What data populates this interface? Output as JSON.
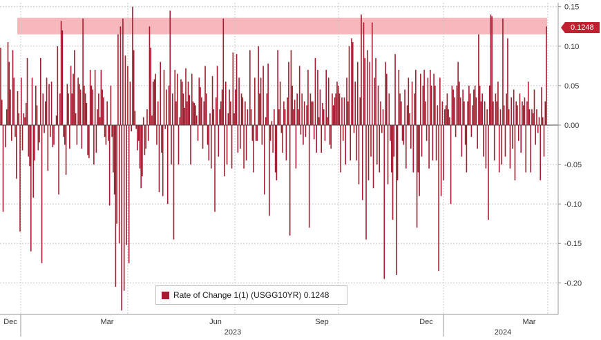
{
  "colors": {
    "bar": "#a31c2f",
    "band": "#f7b8bd",
    "grid": "#c8c8c8",
    "tag": "#c0202f"
  },
  "chart_data": {
    "type": "bar",
    "legend": {
      "label": "Rate of Change 1(1) (USGG10YR) 0.1248",
      "position": "bottom-center"
    },
    "last_value_label": "0.1248",
    "ylim": [
      -0.24,
      0.155
    ],
    "yticks": [
      "0.15",
      "0.10",
      "0.05",
      "0.00",
      "-0.05",
      "-0.10",
      "-0.15",
      "-0.20"
    ],
    "month_labels": [
      "Dec",
      "Mar",
      "Jun",
      "Sep",
      "Dec",
      "Mar"
    ],
    "year_labels": [
      "2023",
      "2024"
    ],
    "highlight_band": [
      0.115,
      0.136
    ],
    "grid": true,
    "values": [
      0.098,
      0.032,
      -0.11,
      0.0,
      -0.028,
      0.02,
      0.105,
      0.08,
      0.045,
      -0.02,
      0.095,
      0.06,
      -0.015,
      -0.068,
      0.043,
      0.015,
      -0.135,
      0.06,
      -0.032,
      0.015,
      0.01,
      0.028,
      0.085,
      -0.04,
      -0.052,
      -0.16,
      0.06,
      -0.092,
      -0.045,
      0.05,
      0.025,
      -0.032,
      -0.022,
      0.085,
      -0.175,
      0.04,
      -0.01,
      0.03,
      0.06,
      -0.058,
      0.052,
      -0.015,
      0.055,
      -0.028,
      -0.025,
      0.0,
      0.012,
      0.1,
      -0.088,
      0.04,
      0.132,
      0.12,
      -0.015,
      -0.025,
      -0.063,
      0.052,
      0.04,
      -0.03,
      0.075,
      0.04,
      0.065,
      0.095,
      0.015,
      -0.025,
      0.06,
      0.052,
      0.045,
      -0.03,
      0.135,
      0.05,
      0.04,
      0.028,
      -0.038,
      -0.042,
      0.07,
      0.05,
      0.045,
      -0.05,
      0.07,
      -0.035,
      0.02,
      0.04,
      0.01,
      0.07,
      0.045,
      0.035,
      -0.015,
      -0.025,
      0.03,
      -0.02,
      -0.102,
      0.05,
      -0.015,
      -0.06,
      -0.088,
      -0.205,
      -0.125,
      0.115,
      -0.15,
      0.125,
      -0.235,
      0.135,
      -0.21,
      0.088,
      -0.152,
      0.075,
      -0.175,
      0.055,
      -0.008,
      0.15,
      0.095,
      0.018,
      -0.005,
      -0.032,
      -0.02,
      -0.055,
      -0.08,
      -0.065,
      0.01,
      -0.038,
      -0.03,
      0.02,
      -0.02,
      0.125,
      0.098,
      0.012,
      0.055,
      0.058,
      0.065,
      -0.025,
      0.03,
      -0.085,
      0.08,
      -0.035,
      -0.09,
      0.07,
      -0.005,
      0.045,
      -0.1,
      0.05,
      0.145,
      -0.05,
      0.04,
      -0.145,
      0.07,
      0.03,
      0.065,
      -0.05,
      0.01,
      0.058,
      0.055,
      0.04,
      0.022,
      0.072,
      0.03,
      0.055,
      0.038,
      -0.05,
      0.065,
      0.03,
      0.028,
      0.025,
      0.012,
      -0.02,
      0.06,
      0.048,
      0.035,
      -0.03,
      0.03,
      0.075,
      0.04,
      -0.025,
      -0.045,
      0.015,
      -0.055,
      0.062,
      0.02,
      -0.11,
      0.035,
      0.075,
      -0.04,
      0.02,
      0.03,
      0.045,
      0.135,
      -0.065,
      0.055,
      -0.05,
      0.015,
      0.045,
      0.03,
      -0.055,
      0.092,
      0.015,
      0.045,
      0.09,
      -0.035,
      0.06,
      -0.03,
      0.04,
      0.035,
      -0.055,
      0.03,
      -0.045,
      0.02,
      0.0,
      0.095,
      0.02,
      -0.02,
      -0.06,
      0.06,
      -0.02,
      -0.02,
      0.1,
      0.04,
      0.06,
      -0.025,
      0.075,
      -0.088,
      0.01,
      0.04,
      0.078,
      -0.115,
      -0.02,
      0.005,
      -0.035,
      0.02,
      -0.06,
      -0.07,
      0.095,
      0.02,
      0.055,
      -0.01,
      -0.035,
      0.03,
      0.02,
      -0.045,
      0.035,
      0.08,
      -0.14,
      0.095,
      0.05,
      0.02,
      0.032,
      -0.055,
      0.04,
      0.02,
      0.075,
      -0.012,
      0.04,
      -0.025,
      0.03,
      -0.015,
      0.025,
      0.07,
      -0.13,
      0.04,
      0.03,
      0.03,
      -0.018,
      0.085,
      -0.035,
      0.07,
      0.01,
      0.045,
      -0.035,
      0.028,
      0.02,
      -0.02,
      0.07,
      0.01,
      0.06,
      -0.025,
      -0.03,
      0.04,
      0.025,
      0.035,
      0.04,
      0.055,
      0.05,
      0.04,
      -0.06,
      0.035,
      -0.02,
      0.035,
      -0.05,
      0.06,
      0.03,
      0.1,
      -0.045,
      0.11,
      0.105,
      -0.01,
      0.055,
      -0.045,
      0.08,
      -0.075,
      0.035,
      0.14,
      -0.095,
      0.13,
      0.085,
      -0.145,
      0.095,
      -0.07,
      0.08,
      -0.04,
      0.13,
      -0.08,
      0.06,
      0.085,
      -0.05,
      0.05,
      -0.06,
      0.03,
      -0.01,
      0.02,
      -0.195,
      0.08,
      0.065,
      -0.075,
      0.04,
      -0.02,
      -0.06,
      -0.12,
      -0.04,
      0.09,
      -0.19,
      -0.07,
      0.07,
      0.04,
      0.03,
      -0.02,
      -0.025,
      0.045,
      -0.055,
      0.025,
      0.06,
      0.015,
      -0.03,
      0.055,
      -0.06,
      0.04,
      0.07,
      -0.13,
      -0.06,
      -0.09,
      0.065,
      -0.04,
      0.05,
      0.07,
      0.03,
      -0.02,
      0.06,
      -0.055,
      0.07,
      0.05,
      -0.045,
      0.065,
      0.05,
      -0.045,
      0.025,
      -0.185,
      0.06,
      -0.09,
      0.03,
      -0.07,
      0.02,
      0.025,
      0.04,
      0.02,
      0.01,
      -0.1,
      0.05,
      0.045,
      0.035,
      -0.015,
      0.05,
      0.08,
      0.055,
      0.035,
      -0.04,
      0.045,
      0.03,
      -0.025,
      -0.06,
      0.03,
      0.05,
      0.04,
      -0.015,
      0.025,
      0.045,
      0.05,
      0.035,
      -0.03,
      0.115,
      0.05,
      0.03,
      0.04,
      -0.04,
      0.03,
      -0.055,
      0.02,
      -0.12,
      0.05,
      0.14,
      0.138,
      0.03,
      -0.045,
      0.04,
      0.03,
      0.055,
      -0.06,
      0.02,
      -0.05,
      0.135,
      0.025,
      -0.04,
      0.04,
      0.11,
      0.02,
      -0.055,
      0.035,
      -0.03,
      0.045,
      -0.07,
      0.03,
      0.025,
      -0.02,
      0.04,
      -0.035,
      0.03,
      0.025,
      0.035,
      -0.06,
      0.03,
      0.055,
      0.02,
      -0.06,
      0.02,
      0.015,
      0.045,
      -0.025,
      0.02,
      -0.01,
      0.01,
      -0.07,
      0.048,
      0.01,
      -0.04,
      0.03,
      0.125
    ]
  }
}
